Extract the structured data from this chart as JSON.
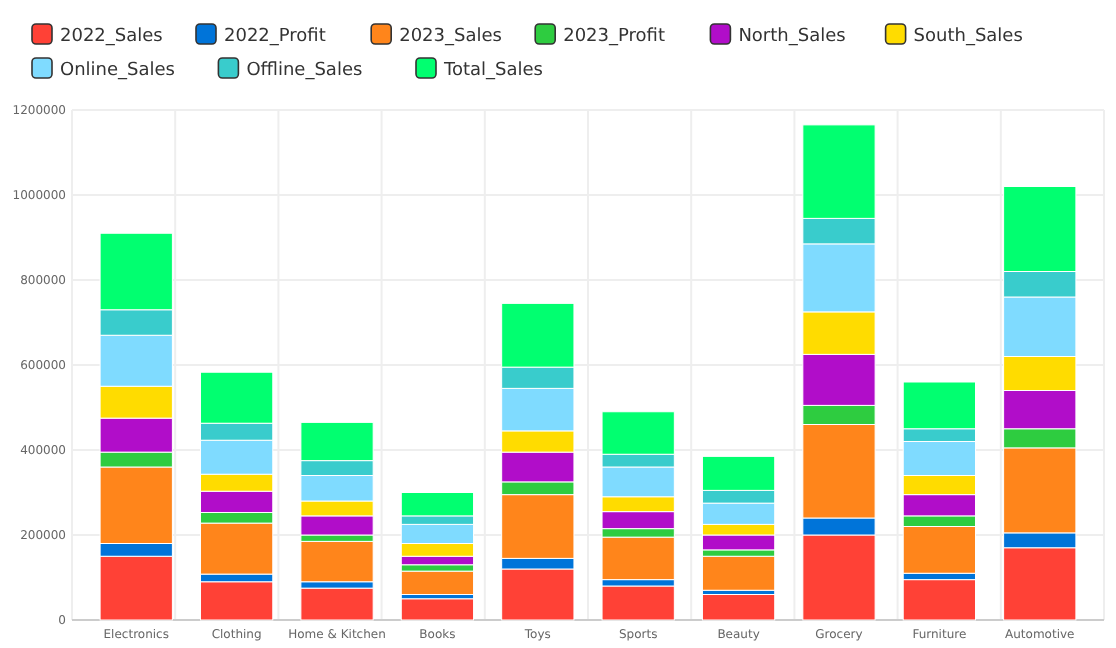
{
  "chart_data": {
    "type": "bar",
    "stacked": true,
    "categories": [
      "Electronics",
      "Clothing",
      "Home & Kitchen",
      "Books",
      "Toys",
      "Sports",
      "Beauty",
      "Grocery",
      "Furniture",
      "Automotive"
    ],
    "series": [
      {
        "name": "2022_Sales",
        "color": "#ff4136",
        "values": [
          150000,
          90000,
          75000,
          50000,
          120000,
          80000,
          60000,
          200000,
          95000,
          170000
        ]
      },
      {
        "name": "2022_Profit",
        "color": "#0074d9",
        "values": [
          30000,
          18000,
          15000,
          10000,
          25000,
          15000,
          10000,
          40000,
          15000,
          35000
        ]
      },
      {
        "name": "2023_Sales",
        "color": "#ff851b",
        "values": [
          180000,
          120000,
          95000,
          55000,
          150000,
          100000,
          80000,
          220000,
          110000,
          200000
        ]
      },
      {
        "name": "2023_Profit",
        "color": "#2ecc40",
        "values": [
          35000,
          25000,
          15000,
          15000,
          30000,
          20000,
          15000,
          45000,
          25000,
          45000
        ]
      },
      {
        "name": "North_Sales",
        "color": "#b10dc9",
        "values": [
          80000,
          50000,
          45000,
          20000,
          70000,
          40000,
          35000,
          120000,
          50000,
          90000
        ]
      },
      {
        "name": "South_Sales",
        "color": "#ffdc00",
        "values": [
          75000,
          40000,
          35000,
          30000,
          50000,
          35000,
          25000,
          100000,
          45000,
          80000
        ]
      },
      {
        "name": "Online_Sales",
        "color": "#7fdbff",
        "values": [
          120000,
          80000,
          60000,
          45000,
          100000,
          70000,
          50000,
          160000,
          80000,
          140000
        ]
      },
      {
        "name": "Offline_Sales",
        "color": "#39cccc",
        "values": [
          60000,
          40000,
          35000,
          20000,
          50000,
          30000,
          30000,
          60000,
          30000,
          60000
        ]
      },
      {
        "name": "Total_Sales",
        "color": "#01ff70",
        "values": [
          180000,
          120000,
          90000,
          55000,
          150000,
          100000,
          80000,
          220000,
          110000,
          200000
        ]
      }
    ],
    "ylim": [
      0,
      1200000
    ],
    "yticks": [
      0,
      200000,
      400000,
      600000,
      800000,
      1000000,
      1200000
    ],
    "grid": true,
    "legend": "top"
  }
}
